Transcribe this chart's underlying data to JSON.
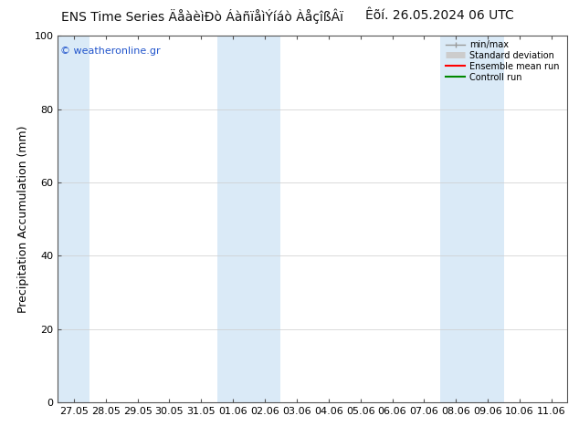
{
  "title_left": "ENS Time Series ÄåàèìÐò ÁàñïåìÝíáò ÀåçîßÂï",
  "title_center": "ENS Time Series ÄåàèìÐò ÁàñïåìÝíáò ÀåçîßÂï",
  "title_right": "Êõí. 26.05.2024 06 UTC",
  "ylabel": "Precipitation Accumulation (mm)",
  "watermark": "© weatheronline.gr",
  "ylim": [
    0,
    100
  ],
  "yticks": [
    0,
    20,
    40,
    60,
    80,
    100
  ],
  "x_labels": [
    "27.05",
    "28.05",
    "29.05",
    "30.05",
    "31.05",
    "01.06",
    "02.06",
    "03.06",
    "04.06",
    "05.06",
    "06.06",
    "07.06",
    "08.06",
    "09.06",
    "10.06",
    "11.06"
  ],
  "blue_band_indices": [
    0,
    5,
    6,
    12,
    13
  ],
  "band_color": "#daeaf7",
  "background_color": "#ffffff",
  "legend_items": [
    {
      "label": "min/max",
      "color": "#999999",
      "lw": 1.0
    },
    {
      "label": "Standard deviation",
      "color": "#cccccc",
      "lw": 5
    },
    {
      "label": "Ensemble mean run",
      "color": "#ff0000",
      "lw": 1.5
    },
    {
      "label": "Controll run",
      "color": "#008800",
      "lw": 1.5
    }
  ],
  "title_fontsize": 10,
  "axis_label_fontsize": 9,
  "tick_fontsize": 8,
  "watermark_color": "#2255cc",
  "grid_color": "#cccccc",
  "spine_color": "#555555"
}
